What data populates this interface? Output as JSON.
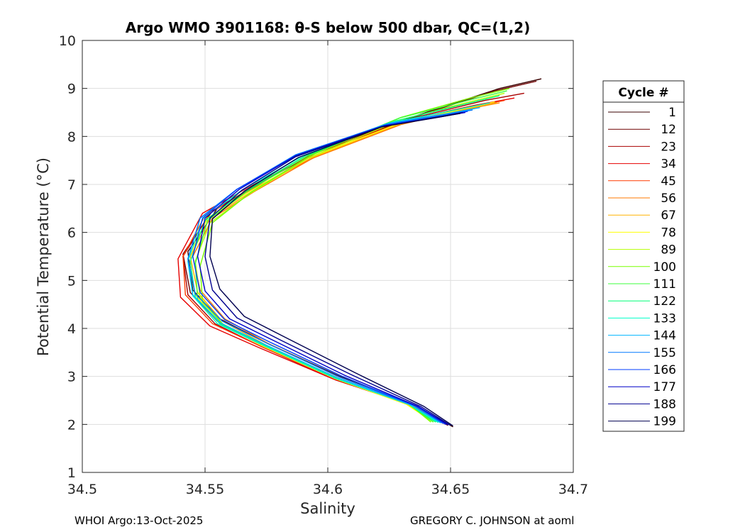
{
  "chart_data": {
    "type": "line",
    "title": "Argo WMO 3901168: θ-S below 500 dbar,  QC=(1,2)",
    "xlabel": "Salinity",
    "ylabel": "Potential Temperature (°C)",
    "xlim": [
      34.5,
      34.7
    ],
    "ylim": [
      1,
      10
    ],
    "xticks": [
      34.5,
      34.55,
      34.6,
      34.65,
      34.7
    ],
    "xtick_labels": [
      "34.5",
      "34.55",
      "34.6",
      "34.65",
      "34.7"
    ],
    "yticks": [
      1,
      2,
      3,
      4,
      5,
      6,
      7,
      8,
      9,
      10
    ],
    "ytick_labels": [
      "1",
      "2",
      "3",
      "4",
      "5",
      "6",
      "7",
      "8",
      "9",
      "10"
    ],
    "grid": true,
    "legend_position": "outside-right",
    "legend_title": "Cycle #",
    "series": [
      {
        "name": "1",
        "color": "#3a0000",
        "x": [
          34.687,
          34.67,
          34.64,
          34.6,
          34.575,
          34.555,
          34.543,
          34.545,
          34.556,
          34.575,
          34.605,
          34.635,
          34.651
        ],
        "y": [
          9.2,
          9.0,
          8.5,
          7.8,
          7.1,
          6.5,
          5.6,
          4.8,
          4.2,
          3.7,
          3.0,
          2.4,
          1.95
        ]
      },
      {
        "name": "12",
        "color": "#6e0000",
        "x": [
          34.685,
          34.668,
          34.638,
          34.598,
          34.573,
          34.553,
          34.541,
          34.544,
          34.555,
          34.574,
          34.604,
          34.634,
          34.649
        ],
        "y": [
          9.15,
          8.95,
          8.45,
          7.75,
          7.05,
          6.45,
          5.55,
          4.75,
          4.15,
          3.65,
          2.95,
          2.4,
          1.98
        ]
      },
      {
        "name": "23",
        "color": "#a80000",
        "x": [
          34.68,
          34.664,
          34.636,
          34.597,
          34.571,
          34.552,
          34.541,
          34.543,
          34.554,
          34.573,
          34.603,
          34.633,
          34.648
        ],
        "y": [
          8.9,
          8.75,
          8.4,
          7.7,
          7.0,
          6.4,
          5.5,
          4.7,
          4.1,
          3.62,
          2.93,
          2.42,
          2.0
        ]
      },
      {
        "name": "34",
        "color": "#e60000",
        "x": [
          34.676,
          34.66,
          34.633,
          34.595,
          34.568,
          34.549,
          34.539,
          34.54,
          34.552,
          34.572,
          34.602,
          34.632,
          34.647
        ],
        "y": [
          8.8,
          8.65,
          8.35,
          7.65,
          6.95,
          6.4,
          5.45,
          4.65,
          4.05,
          3.6,
          2.95,
          2.45,
          2.02
        ]
      },
      {
        "name": "45",
        "color": "#ff3c00",
        "x": [
          34.672,
          34.657,
          34.632,
          34.596,
          34.569,
          34.55,
          34.541,
          34.542,
          34.553,
          34.573,
          34.603,
          34.633,
          34.646
        ],
        "y": [
          8.75,
          8.6,
          8.3,
          7.6,
          6.9,
          6.35,
          5.5,
          4.7,
          4.1,
          3.62,
          2.95,
          2.45,
          2.05
        ]
      },
      {
        "name": "56",
        "color": "#ff7800",
        "x": [
          34.67,
          34.655,
          34.63,
          34.594,
          34.57,
          34.553,
          34.545,
          34.548,
          34.558,
          34.576,
          34.604,
          34.633,
          34.645
        ],
        "y": [
          8.7,
          8.55,
          8.25,
          7.55,
          6.85,
          6.3,
          5.5,
          4.8,
          4.2,
          3.68,
          3.0,
          2.45,
          2.05
        ]
      },
      {
        "name": "67",
        "color": "#ffb400",
        "x": [
          34.669,
          34.654,
          34.629,
          34.593,
          34.569,
          34.552,
          34.544,
          34.547,
          34.557,
          34.575,
          34.603,
          34.632,
          34.644
        ],
        "y": [
          8.7,
          8.55,
          8.25,
          7.55,
          6.85,
          6.3,
          5.5,
          4.75,
          4.15,
          3.65,
          2.97,
          2.43,
          2.05
        ]
      },
      {
        "name": "78",
        "color": "#ffff00",
        "x": [
          34.668,
          34.653,
          34.628,
          34.592,
          34.568,
          34.551,
          34.543,
          34.546,
          34.556,
          34.574,
          34.603,
          34.632,
          34.643
        ],
        "y": [
          8.72,
          8.55,
          8.25,
          7.55,
          6.85,
          6.3,
          5.45,
          4.7,
          4.1,
          3.62,
          2.95,
          2.42,
          2.05
        ]
      },
      {
        "name": "89",
        "color": "#b4ff00",
        "x": [
          34.672,
          34.656,
          34.63,
          34.592,
          34.568,
          34.552,
          34.546,
          34.548,
          34.557,
          34.575,
          34.604,
          34.633,
          34.642
        ],
        "y": [
          8.9,
          8.7,
          8.35,
          7.55,
          6.8,
          6.2,
          5.4,
          4.65,
          4.1,
          3.62,
          2.95,
          2.42,
          2.05
        ]
      },
      {
        "name": "100",
        "color": "#78ff00",
        "x": [
          34.674,
          34.658,
          34.63,
          34.593,
          34.569,
          34.553,
          34.548,
          34.549,
          34.558,
          34.576,
          34.605,
          34.634,
          34.642
        ],
        "y": [
          9.0,
          8.8,
          8.4,
          7.6,
          6.85,
          6.2,
          5.3,
          4.55,
          4.05,
          3.6,
          2.93,
          2.4,
          2.05
        ]
      },
      {
        "name": "111",
        "color": "#3cff3c",
        "x": [
          34.673,
          34.657,
          34.629,
          34.592,
          34.567,
          34.551,
          34.546,
          34.547,
          34.557,
          34.575,
          34.604,
          34.633,
          34.643
        ],
        "y": [
          8.95,
          8.75,
          8.38,
          7.6,
          6.85,
          6.25,
          5.35,
          4.6,
          4.08,
          3.62,
          2.95,
          2.42,
          2.05
        ]
      },
      {
        "name": "122",
        "color": "#00ff78",
        "x": [
          34.67,
          34.654,
          34.628,
          34.591,
          34.566,
          34.55,
          34.544,
          34.546,
          34.556,
          34.575,
          34.604,
          34.633,
          34.644
        ],
        "y": [
          8.85,
          8.65,
          8.33,
          7.6,
          6.85,
          6.25,
          5.4,
          4.65,
          4.1,
          3.63,
          2.95,
          2.42,
          2.05
        ]
      },
      {
        "name": "133",
        "color": "#00ffc8",
        "x": [
          34.666,
          34.652,
          34.627,
          34.59,
          34.565,
          34.549,
          34.543,
          34.545,
          34.555,
          34.574,
          34.603,
          34.633,
          34.645
        ],
        "y": [
          8.7,
          8.55,
          8.3,
          7.6,
          6.88,
          6.28,
          5.4,
          4.68,
          4.1,
          3.64,
          2.96,
          2.42,
          2.04
        ]
      },
      {
        "name": "144",
        "color": "#00b4ff",
        "x": [
          34.662,
          34.649,
          34.625,
          34.588,
          34.563,
          34.548,
          34.543,
          34.545,
          34.556,
          34.575,
          34.604,
          34.634,
          34.646
        ],
        "y": [
          8.6,
          8.48,
          8.28,
          7.62,
          6.9,
          6.3,
          5.45,
          4.7,
          4.12,
          3.65,
          2.97,
          2.4,
          2.03
        ]
      },
      {
        "name": "155",
        "color": "#0078ff",
        "x": [
          34.659,
          34.647,
          34.624,
          34.587,
          34.563,
          34.548,
          34.543,
          34.546,
          34.557,
          34.576,
          34.605,
          34.635,
          34.647
        ],
        "y": [
          8.55,
          8.45,
          8.25,
          7.62,
          6.9,
          6.3,
          5.45,
          4.72,
          4.15,
          3.67,
          2.98,
          2.4,
          2.02
        ]
      },
      {
        "name": "166",
        "color": "#003cff",
        "x": [
          34.657,
          34.646,
          34.623,
          34.587,
          34.563,
          34.549,
          34.545,
          34.548,
          34.558,
          34.577,
          34.606,
          34.636,
          34.648
        ],
        "y": [
          8.52,
          8.42,
          8.23,
          7.6,
          6.9,
          6.3,
          5.5,
          4.75,
          4.18,
          3.7,
          3.0,
          2.38,
          2.0
        ]
      },
      {
        "name": "177",
        "color": "#0000c8",
        "x": [
          34.656,
          34.645,
          34.623,
          34.587,
          34.564,
          34.55,
          34.547,
          34.55,
          34.56,
          34.579,
          34.607,
          34.637,
          34.649
        ],
        "y": [
          8.5,
          8.4,
          8.22,
          7.6,
          6.9,
          6.3,
          5.5,
          4.78,
          4.2,
          3.72,
          3.02,
          2.37,
          1.99
        ]
      },
      {
        "name": "188",
        "color": "#000090",
        "x": [
          34.655,
          34.644,
          34.622,
          34.587,
          34.565,
          34.552,
          34.55,
          34.553,
          34.563,
          34.581,
          34.609,
          34.638,
          34.65
        ],
        "y": [
          8.5,
          8.4,
          8.2,
          7.58,
          6.88,
          6.3,
          5.5,
          4.8,
          4.22,
          3.75,
          3.05,
          2.37,
          1.98
        ]
      },
      {
        "name": "199",
        "color": "#000050",
        "x": [
          34.654,
          34.643,
          34.622,
          34.588,
          34.566,
          34.553,
          34.552,
          34.556,
          34.566,
          34.584,
          34.611,
          34.639,
          34.651
        ],
        "y": [
          8.48,
          8.38,
          8.2,
          7.56,
          6.86,
          6.28,
          5.5,
          4.82,
          4.25,
          3.78,
          3.08,
          2.38,
          1.97
        ]
      }
    ]
  },
  "footer": {
    "left": "WHOI Argo:13-Oct-2025",
    "right": "GREGORY C. JOHNSON at aoml"
  }
}
